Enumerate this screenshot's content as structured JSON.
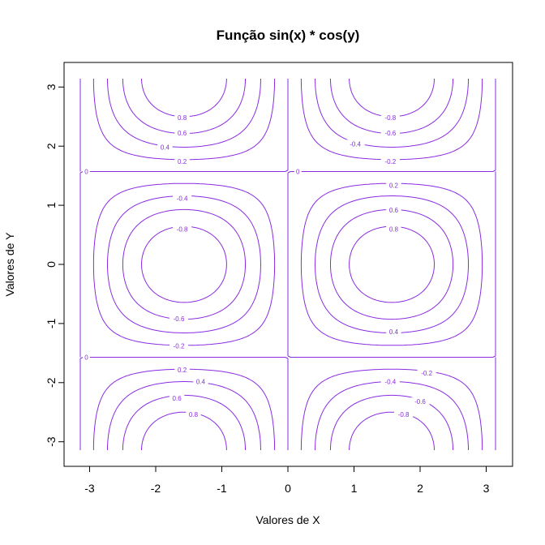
{
  "chart_data": {
    "type": "contour",
    "title": "Função sin(x) * cos(y)",
    "xlabel": "Valores de X",
    "ylabel": "Valores de Y",
    "function": "sin(x) * cos(y)",
    "xlim": [
      -3.1416,
      3.1416
    ],
    "ylim": [
      -3.1416,
      3.1416
    ],
    "x_ticks": [
      -3,
      -2,
      -1,
      0,
      1,
      2,
      3
    ],
    "y_ticks": [
      -3,
      -2,
      -1,
      0,
      1,
      2,
      3
    ],
    "levels": [
      -0.8,
      -0.6,
      -0.4,
      -0.2,
      0,
      0.2,
      0.4,
      0.6,
      0.8
    ],
    "color": "#8a2be2",
    "contour_labels": [
      {
        "text": "0.8",
        "x": -1.6,
        "y": 2.48
      },
      {
        "text": "0.6",
        "x": -1.6,
        "y": 2.22
      },
      {
        "text": "0.4",
        "x": -1.86,
        "y": 1.98
      },
      {
        "text": "0.2",
        "x": -1.6,
        "y": 1.74
      },
      {
        "text": "-0.8",
        "x": 1.55,
        "y": 2.48
      },
      {
        "text": "-0.6",
        "x": 1.55,
        "y": 2.22
      },
      {
        "text": "-0.4",
        "x": 1.02,
        "y": 2.04
      },
      {
        "text": "-0.2",
        "x": 1.55,
        "y": 1.74
      },
      {
        "text": "0",
        "x": -3.05,
        "y": 1.57
      },
      {
        "text": "0",
        "x": 0.15,
        "y": 1.57
      },
      {
        "text": "-0.4",
        "x": -1.6,
        "y": 1.12
      },
      {
        "text": "-0.8",
        "x": -1.6,
        "y": 0.6
      },
      {
        "text": "-0.6",
        "x": -1.65,
        "y": -0.92
      },
      {
        "text": "-0.2",
        "x": -1.65,
        "y": -1.38
      },
      {
        "text": "0.2",
        "x": 1.6,
        "y": 1.34
      },
      {
        "text": "0.6",
        "x": 1.6,
        "y": 0.92
      },
      {
        "text": "0.8",
        "x": 1.6,
        "y": 0.6
      },
      {
        "text": "0.4",
        "x": 1.6,
        "y": -1.14
      },
      {
        "text": "0",
        "x": -3.05,
        "y": -1.57
      },
      {
        "text": "0.2",
        "x": -1.6,
        "y": -1.78
      },
      {
        "text": "0.4",
        "x": -1.32,
        "y": -1.98
      },
      {
        "text": "0.6",
        "x": -1.68,
        "y": -2.26
      },
      {
        "text": "0.8",
        "x": -1.43,
        "y": -2.54
      },
      {
        "text": "-0.2",
        "x": 2.1,
        "y": -1.84
      },
      {
        "text": "-0.4",
        "x": 1.55,
        "y": -1.98
      },
      {
        "text": "-0.6",
        "x": 2.0,
        "y": -2.32
      },
      {
        "text": "-0.8",
        "x": 1.75,
        "y": -2.54
      }
    ]
  }
}
